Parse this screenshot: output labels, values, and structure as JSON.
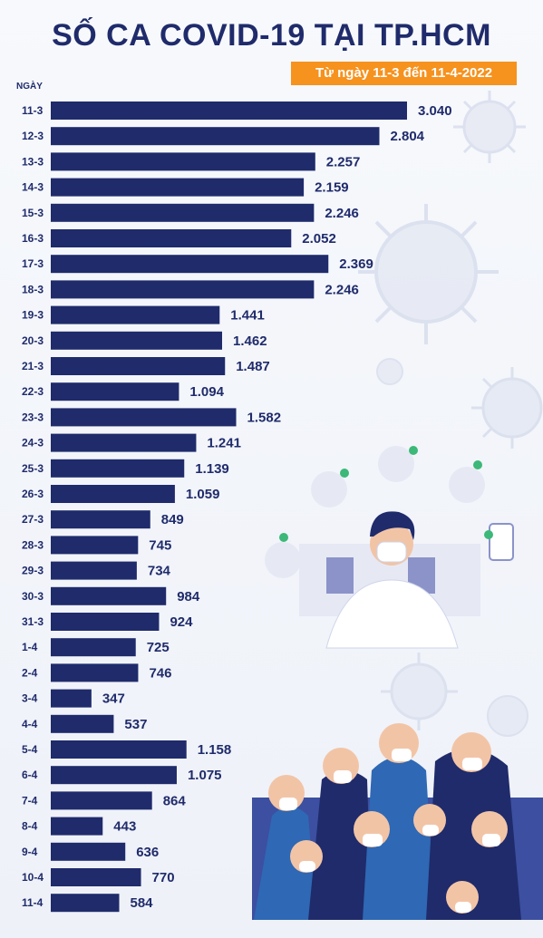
{
  "header": {
    "title": "SỐ CA COVID-19 TẠI TP.HCM",
    "subtitle": "Từ ngày 11-3 đến 11-4-2022"
  },
  "chart_data": {
    "type": "bar",
    "orientation": "horizontal",
    "title": "SỐ CA COVID-19 TẠI TP.HCM",
    "subtitle": "Từ ngày 11-3 đến 11-4-2022",
    "ylabel": "NGÀY",
    "xlabel": "",
    "bar_color": "#1f2b6b",
    "accent_color": "#f6921e",
    "grid": false,
    "categories": [
      "11-3",
      "12-3",
      "13-3",
      "14-3",
      "15-3",
      "16-3",
      "17-3",
      "18-3",
      "19-3",
      "20-3",
      "21-3",
      "22-3",
      "23-3",
      "24-3",
      "25-3",
      "26-3",
      "27-3",
      "28-3",
      "29-3",
      "30-3",
      "31-3",
      "1-4",
      "2-4",
      "3-4",
      "4-4",
      "5-4",
      "6-4",
      "7-4",
      "8-4",
      "9-4",
      "10-4",
      "11-4"
    ],
    "values": [
      3040,
      2804,
      2257,
      2159,
      2246,
      2052,
      2369,
      2246,
      1441,
      1462,
      1487,
      1094,
      1582,
      1241,
      1139,
      1059,
      849,
      745,
      734,
      984,
      924,
      725,
      746,
      347,
      537,
      1158,
      1075,
      864,
      443,
      636,
      770,
      584
    ],
    "value_labels": [
      "3.040",
      "2.804",
      "2.257",
      "2.159",
      "2.246",
      "2.052",
      "2.369",
      "2.246",
      "1.441",
      "1.462",
      "1.487",
      "1.094",
      "1.582",
      "1.241",
      "1.139",
      "1.059",
      "849",
      "745",
      "734",
      "984",
      "924",
      "725",
      "746",
      "347",
      "537",
      "1.158",
      "1.075",
      "864",
      "443",
      "636",
      "770",
      "584"
    ]
  }
}
